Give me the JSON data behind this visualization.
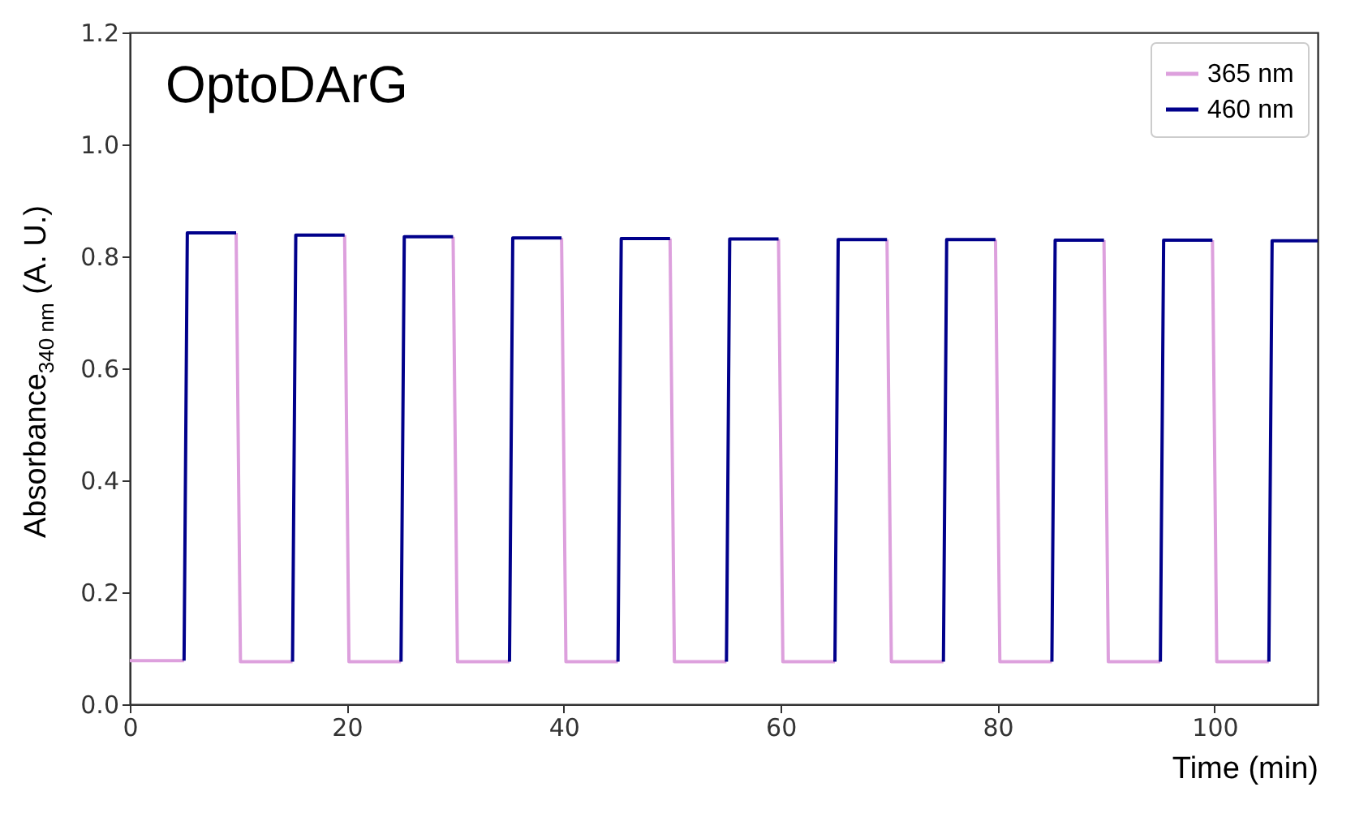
{
  "chart_data": {
    "type": "line",
    "annotations": [
      "OptoDArG"
    ],
    "xlabel": "Time (min)",
    "ylabel": "Absorbance$_{340 nm}$ (A. U.)",
    "xlim": [
      0,
      109.5
    ],
    "xticks": [
      0,
      20,
      40,
      60,
      80,
      100
    ],
    "ylim": [
      0,
      1.2
    ],
    "yticks": [
      {
        "value": 0,
        "label": "0.0"
      },
      0.2,
      0.4,
      0.6,
      0.8,
      {
        "value": 1,
        "label": "1.0"
      },
      1.2
    ],
    "grid": false,
    "legend": "top right",
    "line_style": "solid",
    "marker": "none",
    "series": [
      {
        "name": "365 nm",
        "color": "#dda0dd",
        "x": [
          0,
          5,
          5.1,
          9.8,
          10.2,
          15,
          15.1,
          19.8,
          20.2,
          25,
          25.1,
          29.8,
          30.2,
          35,
          35.1,
          39.8,
          40.2,
          45,
          45.1,
          49.8,
          50.2,
          55,
          55.1,
          59.8,
          60.2,
          65,
          65.1,
          69.8,
          70.2,
          75,
          75.1,
          79.8,
          80.2,
          85,
          85.1,
          89.8,
          90.2,
          95,
          95.1,
          99.8,
          100.2,
          105
        ],
        "values": [
          0.078,
          0.078,
          null,
          0.842,
          0.076,
          0.076,
          null,
          0.838,
          0.076,
          0.076,
          null,
          0.835,
          0.076,
          0.076,
          null,
          0.833,
          0.076,
          0.076,
          null,
          0.832,
          0.076,
          0.076,
          null,
          0.831,
          0.076,
          0.076,
          null,
          0.83,
          0.076,
          0.076,
          null,
          0.83,
          0.076,
          0.076,
          null,
          0.829,
          0.076,
          0.076,
          null,
          0.829,
          0.076,
          0.076
        ]
      },
      {
        "name": "460 nm",
        "color": "#00008b",
        "x": [
          5,
          5.3,
          9.8,
          9.9,
          15,
          15.3,
          19.8,
          19.9,
          25,
          25.3,
          29.8,
          29.9,
          35,
          35.3,
          39.8,
          39.9,
          45,
          45.3,
          49.8,
          49.9,
          55,
          55.3,
          59.8,
          59.9,
          65,
          65.3,
          69.8,
          69.9,
          75,
          75.3,
          79.8,
          79.9,
          85,
          85.3,
          89.8,
          89.9,
          95,
          95.3,
          99.8,
          99.9,
          105,
          105.3,
          109.5
        ],
        "values": [
          0.078,
          0.842,
          0.842,
          null,
          0.076,
          0.838,
          0.838,
          null,
          0.076,
          0.835,
          0.835,
          null,
          0.076,
          0.833,
          0.833,
          null,
          0.076,
          0.832,
          0.832,
          null,
          0.076,
          0.831,
          0.831,
          null,
          0.076,
          0.83,
          0.83,
          null,
          0.076,
          0.83,
          0.83,
          null,
          0.076,
          0.829,
          0.829,
          null,
          0.076,
          0.829,
          0.829,
          null,
          0.076,
          0.828,
          0.828
        ]
      }
    ]
  }
}
